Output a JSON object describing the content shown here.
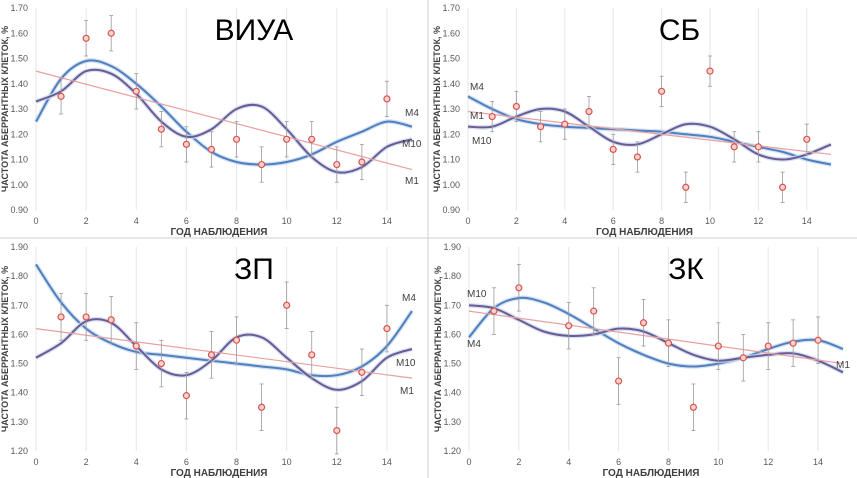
{
  "chart_data": [
    {
      "type": "scatter",
      "title": "ВИУА",
      "xlabel": "ГОД НАБЛЮДЕНИЯ",
      "ylabel": "ЧАСТОТА АБЕРРАНТНЫХ КЛЕТОК, %",
      "xlim": [
        0,
        15
      ],
      "ylim": [
        0.9,
        1.7
      ],
      "xticks": [
        0,
        2,
        4,
        6,
        8,
        10,
        12,
        14
      ],
      "yticks": [
        "0.90",
        "1.00",
        "1.10",
        "1.20",
        "1.30",
        "1.40",
        "1.50",
        "1.60",
        "1.70"
      ],
      "points": {
        "x": [
          1,
          2,
          3,
          4,
          5,
          6,
          7,
          8,
          9,
          10,
          11,
          12,
          13,
          14
        ],
        "y": [
          1.35,
          1.58,
          1.6,
          1.37,
          1.22,
          1.16,
          1.14,
          1.18,
          1.08,
          1.18,
          1.18,
          1.08,
          1.09,
          1.34
        ],
        "error": 0.07
      },
      "series": [
        {
          "name": "M4",
          "color": "#4f7fbf",
          "x": [
            0,
            1,
            2,
            3,
            4,
            5,
            6,
            7,
            8,
            9,
            10,
            11,
            12,
            13,
            14,
            15
          ],
          "y": [
            1.25,
            1.42,
            1.49,
            1.47,
            1.4,
            1.31,
            1.21,
            1.13,
            1.09,
            1.08,
            1.09,
            1.12,
            1.17,
            1.21,
            1.25,
            1.23
          ]
        },
        {
          "name": "M10",
          "color": "#6b5b95",
          "x": [
            0,
            1,
            2,
            3,
            4,
            5,
            6,
            7,
            8,
            9,
            10,
            11,
            12,
            13,
            14,
            15
          ],
          "y": [
            1.33,
            1.37,
            1.45,
            1.44,
            1.36,
            1.25,
            1.19,
            1.22,
            1.3,
            1.31,
            1.22,
            1.11,
            1.05,
            1.07,
            1.15,
            1.18
          ]
        },
        {
          "name": "M1",
          "color": "#e8a0a0",
          "x": [
            0,
            15
          ],
          "y": [
            1.45,
            1.06
          ]
        }
      ]
    },
    {
      "type": "scatter",
      "title": "СБ",
      "xlabel": "ГОД НАБЛЮДЕНИЯ",
      "ylabel": "ЧАСТОТА АБЕРРАНТНЫХ КЛЕТОК, %",
      "xlim": [
        0,
        15
      ],
      "ylim": [
        0.9,
        1.7
      ],
      "xticks": [
        0,
        2,
        4,
        6,
        8,
        10,
        12,
        14
      ],
      "yticks": [
        "0.90",
        "1.00",
        "1.10",
        "1.20",
        "1.30",
        "1.40",
        "1.50",
        "1.60",
        "1.70"
      ],
      "points": {
        "x": [
          1,
          2,
          3,
          4,
          5,
          6,
          7,
          8,
          9,
          10,
          11,
          12,
          13,
          14
        ],
        "y": [
          1.27,
          1.31,
          1.23,
          1.24,
          1.29,
          1.14,
          1.11,
          1.37,
          0.99,
          1.45,
          1.15,
          1.15,
          0.99,
          1.18
        ],
        "error": 0.06
      },
      "series": [
        {
          "name": "M4",
          "color": "#4f7fbf",
          "x": [
            0,
            1,
            2,
            3,
            4,
            5,
            6,
            7,
            8,
            9,
            10,
            11,
            12,
            13,
            14,
            15
          ],
          "y": [
            1.35,
            1.3,
            1.26,
            1.24,
            1.23,
            1.225,
            1.22,
            1.215,
            1.21,
            1.2,
            1.19,
            1.17,
            1.15,
            1.13,
            1.1,
            1.08
          ]
        },
        {
          "name": "M10",
          "color": "#6b5b95",
          "x": [
            0,
            1,
            2,
            3,
            4,
            5,
            6,
            7,
            8,
            9,
            10,
            11,
            12,
            13,
            14,
            15
          ],
          "y": [
            1.23,
            1.23,
            1.27,
            1.3,
            1.29,
            1.23,
            1.17,
            1.16,
            1.2,
            1.24,
            1.23,
            1.18,
            1.12,
            1.1,
            1.12,
            1.16
          ]
        },
        {
          "name": "M1",
          "color": "#e8a0a0",
          "x": [
            0,
            15
          ],
          "y": [
            1.29,
            1.12
          ]
        }
      ]
    },
    {
      "type": "scatter",
      "title": "ЗП",
      "xlabel": "ГОД НАБЛЮДЕНИЯ",
      "ylabel": "ЧАСТОТА АБЕРРАНТНЫХ КЛЕТОК, %",
      "xlim": [
        0,
        15
      ],
      "ylim": [
        1.2,
        1.9
      ],
      "xticks": [
        0,
        2,
        4,
        6,
        8,
        10,
        12,
        14
      ],
      "yticks": [
        "1.20",
        "1.30",
        "1.40",
        "1.50",
        "1.60",
        "1.70",
        "1.80",
        "1.90"
      ],
      "points": {
        "x": [
          1,
          2,
          3,
          4,
          5,
          6,
          7,
          8,
          9,
          10,
          11,
          12,
          13,
          14
        ],
        "y": [
          1.66,
          1.66,
          1.65,
          1.56,
          1.5,
          1.39,
          1.53,
          1.58,
          1.35,
          1.7,
          1.53,
          1.27,
          1.47,
          1.62
        ],
        "error": 0.08
      },
      "series": [
        {
          "name": "M4",
          "color": "#4f7fbf",
          "x": [
            0,
            1,
            2,
            3,
            4,
            5,
            6,
            7,
            8,
            9,
            10,
            11,
            12,
            13,
            14,
            15
          ],
          "y": [
            1.84,
            1.71,
            1.62,
            1.57,
            1.54,
            1.53,
            1.52,
            1.51,
            1.5,
            1.49,
            1.48,
            1.46,
            1.46,
            1.49,
            1.56,
            1.68
          ]
        },
        {
          "name": "M10",
          "color": "#6b5b95",
          "x": [
            0,
            1,
            2,
            3,
            4,
            5,
            6,
            7,
            8,
            9,
            10,
            11,
            12,
            13,
            14,
            15
          ],
          "y": [
            1.52,
            1.57,
            1.645,
            1.64,
            1.56,
            1.48,
            1.46,
            1.51,
            1.59,
            1.59,
            1.52,
            1.45,
            1.41,
            1.44,
            1.52,
            1.55
          ]
        },
        {
          "name": "M1",
          "color": "#e8a0a0",
          "x": [
            0,
            15
          ],
          "y": [
            1.62,
            1.45
          ]
        }
      ]
    },
    {
      "type": "scatter",
      "title": "ЗК",
      "xlabel": "ГОД НАБЛЮДЕНИЯ",
      "ylabel": "ЧАСТОТА АБЕРРАНТНЫХ КЛЕТОК, %",
      "xlim": [
        0,
        15
      ],
      "ylim": [
        1.2,
        1.9
      ],
      "xticks": [
        0,
        2,
        4,
        6,
        8,
        10,
        12,
        14
      ],
      "yticks": [
        "1.20",
        "1.30",
        "1.40",
        "1.50",
        "1.60",
        "1.70",
        "1.80",
        "1.90"
      ],
      "points": {
        "x": [
          1,
          2,
          4,
          5,
          6,
          7,
          8,
          9,
          10,
          11,
          12,
          13,
          14
        ],
        "y": [
          1.68,
          1.76,
          1.63,
          1.68,
          1.44,
          1.64,
          1.57,
          1.35,
          1.56,
          1.52,
          1.56,
          1.57,
          1.58
        ],
        "error": 0.08
      },
      "series": [
        {
          "name": "M4",
          "color": "#4f7fbf",
          "x": [
            0,
            1,
            2,
            3,
            4,
            5,
            6,
            7,
            8,
            9,
            10,
            11,
            12,
            13,
            14,
            15
          ],
          "y": [
            1.59,
            1.69,
            1.725,
            1.71,
            1.67,
            1.62,
            1.57,
            1.53,
            1.5,
            1.49,
            1.5,
            1.52,
            1.55,
            1.575,
            1.58,
            1.55
          ]
        },
        {
          "name": "M10",
          "color": "#6b5b95",
          "x": [
            0,
            1,
            2,
            3,
            4,
            5,
            6,
            7,
            8,
            9,
            10,
            11,
            12,
            13,
            14,
            15
          ],
          "y": [
            1.7,
            1.69,
            1.65,
            1.61,
            1.595,
            1.6,
            1.62,
            1.61,
            1.57,
            1.53,
            1.51,
            1.52,
            1.53,
            1.535,
            1.51,
            1.47
          ]
        },
        {
          "name": "M1",
          "color": "#e8a0a0",
          "x": [
            0,
            15
          ],
          "y": [
            1.68,
            1.5
          ]
        }
      ]
    }
  ]
}
